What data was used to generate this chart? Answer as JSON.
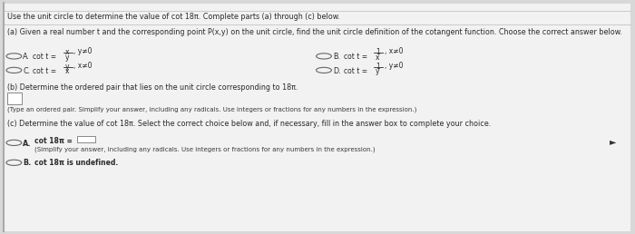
{
  "background_color": "#d8d8d8",
  "content_bg": "#f0f0f0",
  "title_line": "Use the unit circle to determine the value of cot 18π. Complete parts (a) through (c) below.",
  "part_a_intro": "(a) Given a real number t and the corresponding point P(x,y) on the unit circle, find the unit circle definition of the cotangent function. Choose the correct answer below.",
  "part_b_intro": "(b) Determine the ordered pair that lies on the unit circle corresponding to 18π.",
  "part_b_note": "(Type an ordered pair. Simplify your answer, including any radicals. Use integers or fractions for any numbers in the expression.)",
  "part_c_intro": "(c) Determine the value of cot 18π. Select the correct choice below and, if necessary, fill in the answer box to complete your choice.",
  "option_cA_note": "(Simplify your answer, including any radicals. Use integers or fractions for any numbers in the expression.)",
  "font_color": "#2a2a2a",
  "circle_color": "#666666",
  "note_color": "#3a3a3a"
}
